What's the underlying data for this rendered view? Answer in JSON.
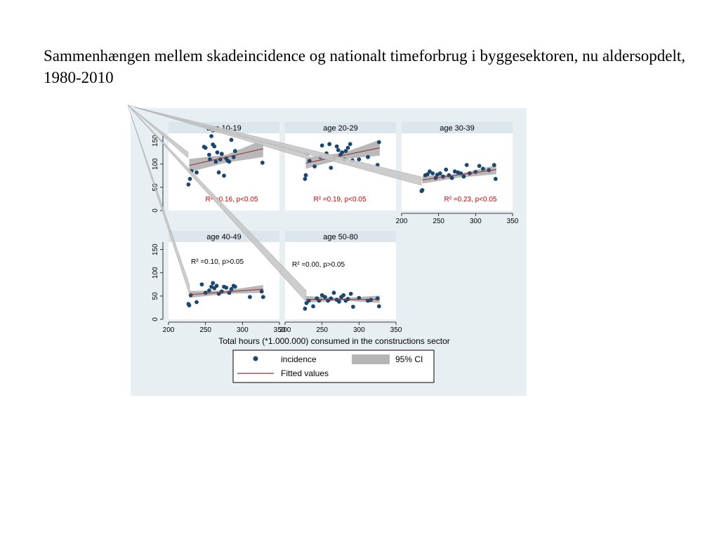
{
  "slide": {
    "title": "Sammenhængen mellem skadeincidence og nationalt timeforbrug i byggesektoren, nu aldersopdelt, 1980-2010"
  },
  "colors": {
    "figure_background": "#e8eff3",
    "panel_header": "#dce6ed",
    "marker": "#1a476f",
    "fit_line": "#90353b",
    "ci_band": "#b5b5b5",
    "significant_text": "#d00000"
  },
  "chart_data": {
    "type": "scatter",
    "layout": "small-multiples 3x2 (by age group)",
    "xlabel": "Total hours (*1.000.000) consumed in the constructions sector",
    "ylabel": "",
    "xlim": [
      200,
      350
    ],
    "ylim": [
      0,
      160
    ],
    "x_ticks": [
      "200",
      "250",
      "300",
      "350"
    ],
    "y_ticks": [
      "0",
      "50",
      "100",
      "150"
    ],
    "grid": false,
    "legend_position": "bottom",
    "legend": {
      "incidence": "incidence",
      "ci": "95% CI",
      "fitted": "Fitted values"
    },
    "panels": [
      {
        "name": "age 10-19",
        "annotation": "R² =0.16, p<0.05",
        "significant": true,
        "fit": {
          "x": [
            228,
            328
          ],
          "y": [
            97,
            133
          ]
        },
        "ci": {
          "lower_start": 83,
          "upper_start": 111,
          "lower_mid": 103,
          "upper_mid": 120,
          "lower_end": 115,
          "upper_end": 152
        },
        "x": [
          227,
          229,
          231,
          238,
          248,
          250,
          255,
          256,
          258,
          260,
          262,
          264,
          266,
          268,
          270,
          272,
          275,
          278,
          280,
          282,
          285,
          288,
          290,
          327
        ],
        "y": [
          56,
          68,
          85,
          82,
          137,
          135,
          120,
          110,
          160,
          142,
          138,
          105,
          125,
          82,
          110,
          122,
          75,
          112,
          107,
          105,
          152,
          115,
          128,
          103
        ]
      },
      {
        "name": "age 20-29",
        "annotation": "R² =0.19, p<0.05",
        "significant": true,
        "fit": {
          "x": [
            228,
            328
          ],
          "y": [
            102,
            135
          ]
        },
        "ci": {
          "lower_start": 90,
          "upper_start": 114,
          "lower_mid": 111,
          "upper_mid": 124,
          "lower_end": 118,
          "upper_end": 152
        },
        "x": [
          227,
          228,
          230,
          233,
          240,
          248,
          250,
          256,
          260,
          262,
          266,
          270,
          272,
          275,
          277,
          280,
          282,
          285,
          288,
          291,
          300,
          312,
          325,
          327
        ],
        "y": [
          68,
          76,
          122,
          107,
          95,
          115,
          140,
          123,
          143,
          92,
          113,
          138,
          130,
          120,
          125,
          110,
          128,
          135,
          143,
          108,
          110,
          115,
          98,
          147
        ]
      },
      {
        "name": "age 30-39",
        "annotation": "R² =0.23, p<0.05",
        "significant": true,
        "fit": {
          "x": [
            228,
            328
          ],
          "y": [
            66,
            88
          ]
        },
        "ci": {
          "lower_start": 58,
          "upper_start": 74,
          "lower_mid": 71,
          "upper_mid": 79,
          "lower_end": 78,
          "upper_end": 98
        },
        "x": [
          227,
          228,
          232,
          235,
          238,
          242,
          246,
          248,
          252,
          256,
          260,
          264,
          268,
          272,
          276,
          280,
          284,
          288,
          292,
          300,
          305,
          310,
          318,
          325,
          327
        ],
        "y": [
          42,
          44,
          76,
          78,
          84,
          80,
          70,
          77,
          80,
          73,
          88,
          76,
          70,
          84,
          82,
          80,
          73,
          98,
          80,
          83,
          96,
          90,
          87,
          98,
          68
        ]
      },
      {
        "name": "age 40-49",
        "annotation": "R² =0.10, p>0.05",
        "significant": false,
        "fit": {
          "x": [
            228,
            328
          ],
          "y": [
            53,
            65
          ]
        },
        "ci": {
          "lower_start": 46,
          "upper_start": 61,
          "lower_mid": 55,
          "upper_mid": 62,
          "lower_end": 57,
          "upper_end": 74
        },
        "x": [
          227,
          228,
          230,
          238,
          245,
          250,
          255,
          258,
          260,
          262,
          265,
          268,
          272,
          275,
          278,
          282,
          285,
          288,
          290,
          310,
          326,
          328
        ],
        "y": [
          33,
          30,
          52,
          37,
          75,
          57,
          62,
          70,
          78,
          67,
          72,
          55,
          60,
          70,
          68,
          57,
          65,
          72,
          70,
          48,
          60,
          48
        ]
      },
      {
        "name": "age 50-80",
        "annotation": "R² =0.00, p>0.05",
        "significant": false,
        "fit": {
          "x": [
            228,
            328
          ],
          "y": [
            43,
            43
          ]
        },
        "ci": {
          "lower_start": 36,
          "upper_start": 50,
          "lower_mid": 40,
          "upper_mid": 46,
          "lower_end": 35,
          "upper_end": 51
        },
        "x": [
          227,
          229,
          232,
          238,
          243,
          246,
          250,
          254,
          258,
          262,
          266,
          270,
          273,
          276,
          279,
          282,
          285,
          289,
          292,
          300,
          312,
          316,
          325,
          327
        ],
        "y": [
          23,
          35,
          40,
          28,
          45,
          40,
          52,
          48,
          40,
          45,
          57,
          42,
          38,
          48,
          52,
          40,
          44,
          55,
          27,
          46,
          40,
          42,
          45,
          28
        ]
      }
    ]
  }
}
